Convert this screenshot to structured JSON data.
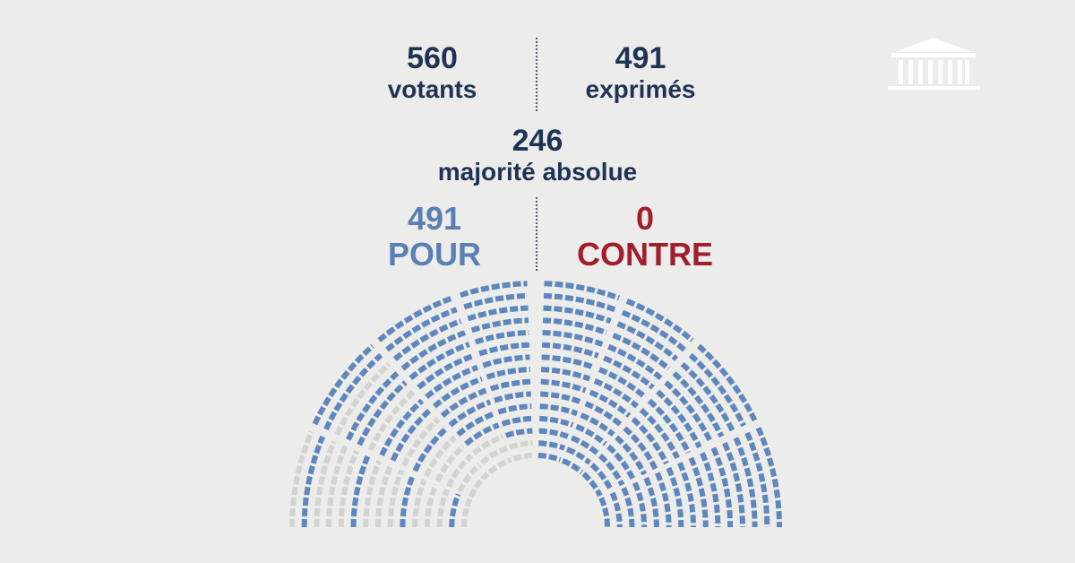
{
  "votes": {
    "votants": {
      "value": "560",
      "label": "votants"
    },
    "exprimes": {
      "value": "491",
      "label": "exprimés"
    },
    "majorite": {
      "value": "246",
      "label": "majorité absolue"
    },
    "pour": {
      "value": "491",
      "label": "POUR"
    },
    "contre": {
      "value": "0",
      "label": "CONTRE"
    }
  },
  "colors": {
    "background": "#ececea",
    "text_dark": "#1f3355",
    "pour": "#5a7fb3",
    "contre": "#a11f2c",
    "seat_pour": "#5f86bd",
    "seat_absent": "#d3d3d1",
    "logo": "#ffffff"
  },
  "logo": {
    "icon": "assemblee-nationale-building-icon"
  }
}
